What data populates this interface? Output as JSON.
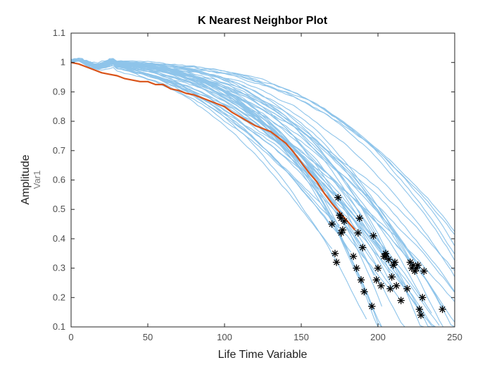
{
  "chart_data": {
    "type": "line",
    "title": "K Nearest Neighbor Plot",
    "xlabel": "Life Time Variable",
    "ylabel": "Amplitude",
    "ylabel_secondary": "Var1",
    "xlim": [
      0,
      250
    ],
    "ylim": [
      0.1,
      1.1
    ],
    "x_ticks": [
      "0",
      "50",
      "100",
      "150",
      "200",
      "250"
    ],
    "y_ticks": [
      "0.1",
      "0.2",
      "0.3",
      "0.4",
      "0.5",
      "0.6",
      "0.7",
      "0.8",
      "0.9",
      "1",
      "1.1"
    ],
    "grid": false,
    "legend": "none",
    "colors": {
      "neighbor_curves": "#8ec4ea",
      "highlight_curve": "#d95319",
      "end_markers": "#000000",
      "axes": "#262626"
    },
    "highlight_series": {
      "x": [
        0,
        5,
        10,
        15,
        20,
        25,
        30,
        35,
        40,
        45,
        50,
        55,
        60,
        65,
        70,
        75,
        80,
        85,
        90,
        95,
        100,
        105,
        110,
        115,
        120,
        125,
        130,
        135,
        140,
        145,
        150,
        155,
        160,
        165,
        170,
        175,
        180,
        185
      ],
      "y": [
        1.0,
        0.995,
        0.985,
        0.975,
        0.965,
        0.96,
        0.955,
        0.945,
        0.94,
        0.935,
        0.935,
        0.925,
        0.925,
        0.91,
        0.905,
        0.895,
        0.89,
        0.88,
        0.87,
        0.86,
        0.85,
        0.83,
        0.815,
        0.8,
        0.785,
        0.775,
        0.765,
        0.745,
        0.725,
        0.695,
        0.66,
        0.625,
        0.595,
        0.555,
        0.52,
        0.49,
        0.46,
        0.43
      ]
    },
    "end_points": {
      "x": [
        170,
        172,
        173,
        174,
        175,
        176,
        176,
        177,
        178,
        184,
        186,
        187,
        188,
        189,
        190,
        191,
        196,
        197,
        199,
        200,
        202,
        204,
        205,
        205,
        207,
        208,
        209,
        210,
        211,
        212,
        215,
        219,
        221,
        222,
        223,
        224,
        225,
        226,
        227,
        228,
        229,
        230,
        242
      ],
      "y": [
        0.45,
        0.35,
        0.32,
        0.54,
        0.48,
        0.42,
        0.47,
        0.43,
        0.46,
        0.34,
        0.3,
        0.42,
        0.47,
        0.26,
        0.37,
        0.22,
        0.17,
        0.41,
        0.26,
        0.3,
        0.24,
        0.34,
        0.35,
        0.34,
        0.33,
        0.23,
        0.27,
        0.31,
        0.32,
        0.24,
        0.19,
        0.23,
        0.32,
        0.3,
        0.31,
        0.29,
        0.3,
        0.31,
        0.16,
        0.14,
        0.2,
        0.29,
        0.16
      ]
    }
  }
}
